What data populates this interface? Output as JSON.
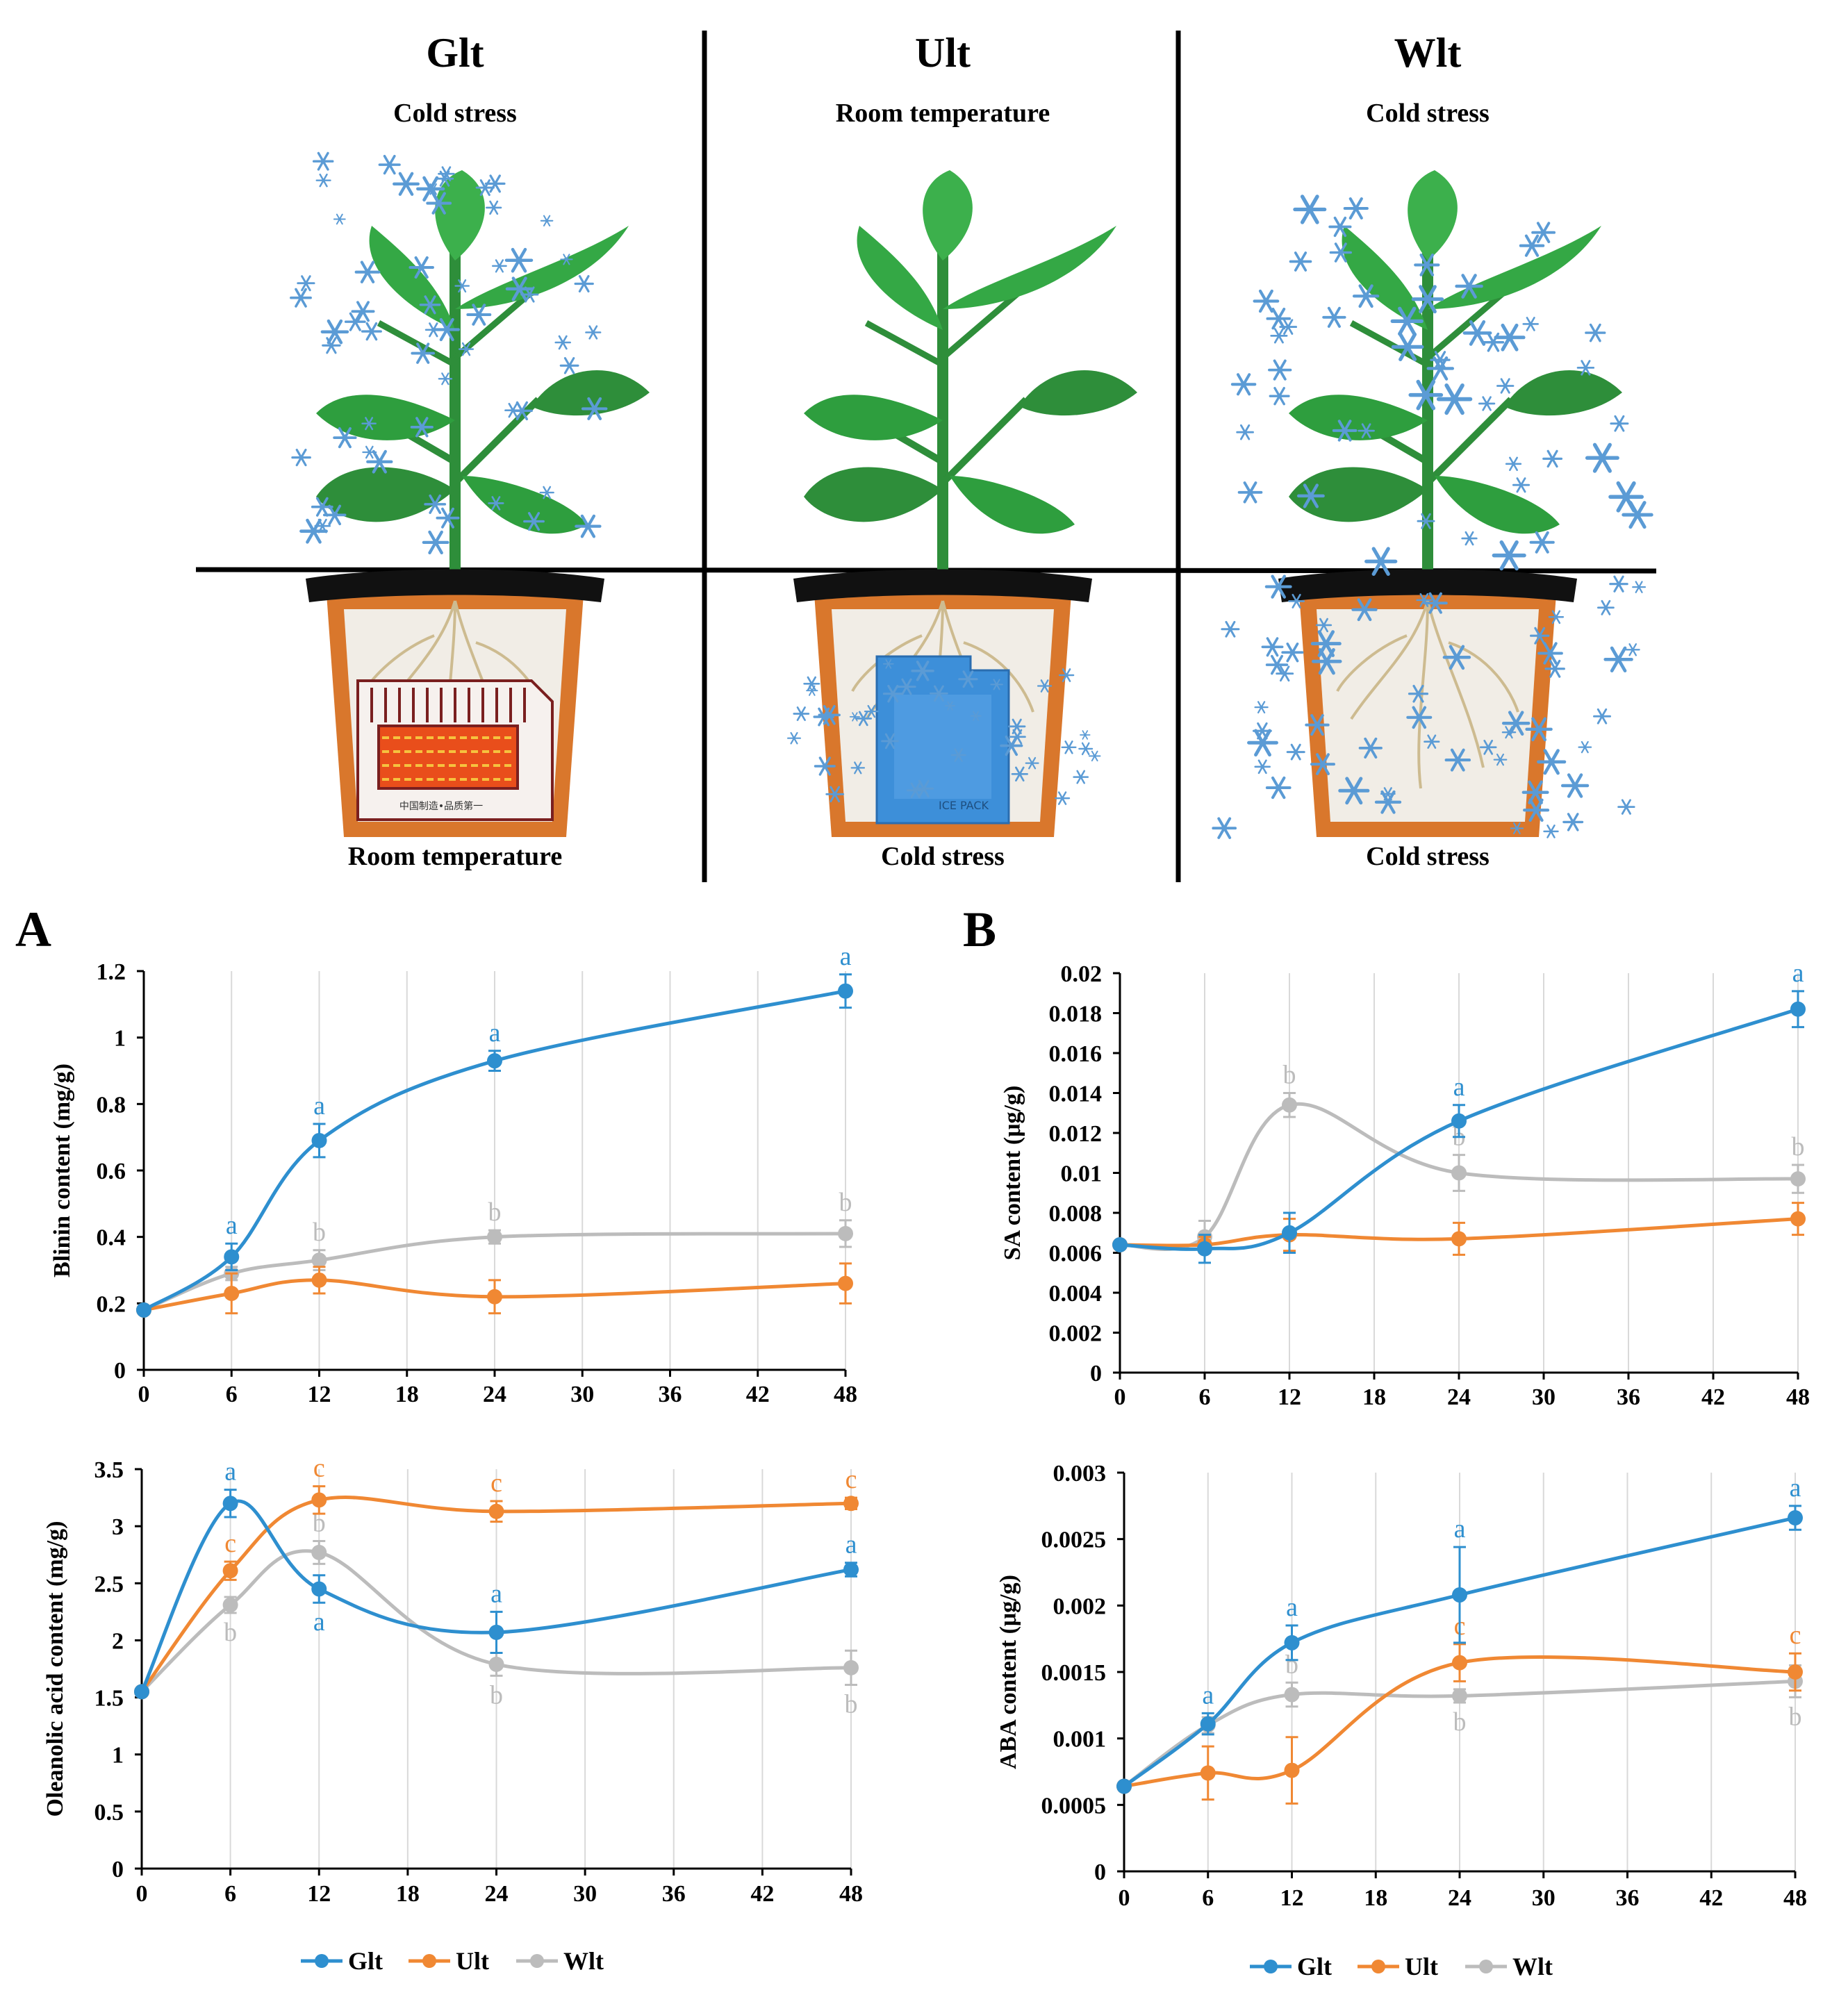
{
  "colors": {
    "Glt": "#2E8FCF",
    "Ult": "#F08833",
    "Wlt": "#BCBCBC",
    "grid": "#D9D9D9",
    "pot": "#D9772C",
    "soil": "#F1EDE6",
    "leaf": "#2E9E3E",
    "snow": "#5B9BD5"
  },
  "illustration": {
    "panels": [
      {
        "title": "Glt",
        "top_label": "Cold stress",
        "bottom_label": "Room temperature",
        "root_device": "heater"
      },
      {
        "title": "Ult",
        "top_label": "Room temperature",
        "bottom_label": "Cold stress",
        "root_device": "ice-pack"
      },
      {
        "title": "Wlt",
        "top_label": "Cold stress",
        "bottom_label": "Cold stress",
        "root_device": "none"
      }
    ],
    "heater_caption": "中国制造•品质第一",
    "ice_pack_caption": "ICE PACK"
  },
  "legend": {
    "items": [
      "Glt",
      "Ult",
      "Wlt"
    ]
  },
  "chart_data": [
    {
      "type": "line",
      "panel_letter": "A",
      "ylabel": "Blinin content (mg/g)",
      "x": [
        0,
        6,
        12,
        24,
        48
      ],
      "xticks": [
        0,
        6,
        12,
        18,
        24,
        30,
        36,
        42,
        48
      ],
      "ylim": [
        0,
        1.2
      ],
      "yticks": [
        "0",
        "0.2",
        "0.4",
        "0.6",
        "0.8",
        "1",
        "1.2"
      ],
      "series": [
        {
          "name": "Glt",
          "values": [
            0.18,
            0.34,
            0.69,
            0.93,
            1.14
          ],
          "err": [
            0,
            0.04,
            0.05,
            0.03,
            0.05
          ],
          "labels": [
            "",
            "a",
            "a",
            "a",
            "a"
          ]
        },
        {
          "name": "Ult",
          "values": [
            0.18,
            0.23,
            0.27,
            0.22,
            0.26
          ],
          "err": [
            0,
            0.06,
            0.04,
            0.05,
            0.06
          ],
          "labels": [
            "",
            "",
            "",
            "",
            ""
          ]
        },
        {
          "name": "Wlt",
          "values": [
            0.18,
            0.29,
            0.33,
            0.4,
            0.41
          ],
          "err": [
            0,
            0.02,
            0.03,
            0.02,
            0.04
          ],
          "labels": [
            "",
            "",
            "b",
            "b",
            "b"
          ]
        }
      ]
    },
    {
      "type": "line",
      "panel_letter": "B",
      "ylabel": "SA content (μg/g)",
      "x": [
        0,
        6,
        12,
        24,
        48
      ],
      "xticks": [
        0,
        6,
        12,
        18,
        24,
        30,
        36,
        42,
        48
      ],
      "ylim": [
        0,
        0.02
      ],
      "yticks": [
        "0",
        "0.002",
        "0.004",
        "0.006",
        "0.008",
        "0.01",
        "0.012",
        "0.014",
        "0.016",
        "0.018",
        "0.02"
      ],
      "series": [
        {
          "name": "Glt",
          "values": [
            0.0064,
            0.0062,
            0.007,
            0.0126,
            0.0182
          ],
          "err": [
            0,
            0.0007,
            0.001,
            0.0008,
            0.0009
          ],
          "labels": [
            "",
            "",
            "",
            "a",
            "a"
          ]
        },
        {
          "name": "Ult",
          "values": [
            0.0064,
            0.0064,
            0.0069,
            0.0067,
            0.0077
          ],
          "err": [
            0,
            0.0004,
            0.0008,
            0.0008,
            0.0008
          ],
          "labels": [
            "",
            "",
            "",
            "",
            ""
          ]
        },
        {
          "name": "Wlt",
          "values": [
            0.0064,
            0.0068,
            0.0134,
            0.01,
            0.0097
          ],
          "err": [
            0,
            0.0008,
            0.0006,
            0.0009,
            0.0007
          ],
          "labels": [
            "",
            "",
            "b",
            "b",
            "b"
          ]
        }
      ]
    },
    {
      "type": "line",
      "panel_letter": "",
      "ylabel": "Oleanolic acid content (mg/g)",
      "x": [
        0,
        6,
        12,
        24,
        48
      ],
      "xticks": [
        0,
        6,
        12,
        18,
        24,
        30,
        36,
        42,
        48
      ],
      "ylim": [
        0,
        3.5
      ],
      "yticks": [
        "0",
        "0.5",
        "1",
        "1.5",
        "2",
        "2.5",
        "3",
        "3.5"
      ],
      "series": [
        {
          "name": "Glt",
          "values": [
            1.55,
            3.2,
            2.45,
            2.07,
            2.62
          ],
          "err": [
            0,
            0.12,
            0.12,
            0.18,
            0.06
          ],
          "labels": [
            "",
            "a",
            "a",
            "a",
            "a"
          ]
        },
        {
          "name": "Ult",
          "values": [
            1.55,
            2.61,
            3.23,
            3.13,
            3.2
          ],
          "err": [
            0,
            0.08,
            0.12,
            0.09,
            0.05
          ],
          "labels": [
            "",
            "c",
            "c",
            "c",
            "c"
          ]
        },
        {
          "name": "Wlt",
          "values": [
            1.55,
            2.31,
            2.77,
            1.79,
            1.76
          ],
          "err": [
            0,
            0.07,
            0.1,
            0.1,
            0.15
          ],
          "labels": [
            "",
            "b",
            "b",
            "b",
            "b"
          ]
        }
      ]
    },
    {
      "type": "line",
      "panel_letter": "",
      "ylabel": "ABA content (μg/g)",
      "x": [
        0,
        6,
        12,
        24,
        48
      ],
      "xticks": [
        0,
        6,
        12,
        18,
        24,
        30,
        36,
        42,
        48
      ],
      "ylim": [
        0,
        0.003
      ],
      "yticks": [
        "0",
        "0.0005",
        "0.001",
        "0.0015",
        "0.002",
        "0.0025",
        "0.003"
      ],
      "series": [
        {
          "name": "Glt",
          "values": [
            0.00064,
            0.00111,
            0.00172,
            0.00208,
            0.00266
          ],
          "err": [
            0,
            8e-05,
            0.00013,
            0.00036,
            9e-05
          ],
          "labels": [
            "",
            "a",
            "a",
            "a",
            "a"
          ]
        },
        {
          "name": "Ult",
          "values": [
            0.00064,
            0.00074,
            0.00076,
            0.00157,
            0.0015
          ],
          "err": [
            0,
            0.0002,
            0.00025,
            0.00014,
            0.00014
          ],
          "labels": [
            "",
            "",
            "",
            "c",
            "c"
          ]
        },
        {
          "name": "Wlt",
          "values": [
            0.00064,
            0.0011,
            0.00133,
            0.00132,
            0.00143
          ],
          "err": [
            0,
            6e-05,
            9e-05,
            5e-05,
            0.00012
          ],
          "labels": [
            "",
            "",
            "b",
            "b",
            "b"
          ]
        }
      ]
    }
  ]
}
